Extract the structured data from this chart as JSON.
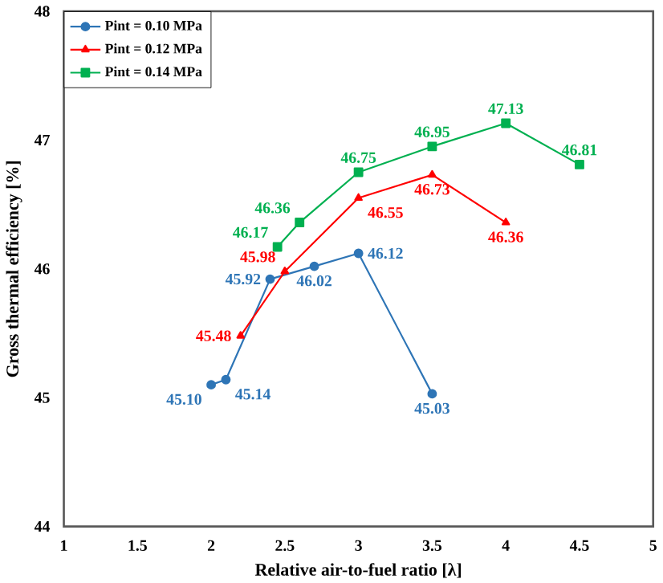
{
  "chart_data": {
    "type": "line",
    "xlabel": "Relative air-to-fuel ratio [λ]",
    "ylabel": "Gross thermal efficiency [%]",
    "xlim": [
      1,
      5
    ],
    "xticks": [
      1,
      1.5,
      2,
      2.5,
      3,
      3.5,
      4,
      4.5,
      5
    ],
    "ylim": [
      44,
      48
    ],
    "yticks": [
      44,
      45,
      46,
      47,
      48
    ],
    "legend": "top left",
    "grid": false,
    "line_style": "solid",
    "series": [
      {
        "name": "Pint = 0.10 MPa",
        "color": "#2e75b6",
        "marker": "circle",
        "x": [
          2.0,
          2.1,
          2.4,
          2.7,
          3.0,
          3.5
        ],
        "values": [
          45.1,
          45.14,
          45.92,
          46.02,
          46.12,
          45.03
        ],
        "value_labels": [
          "45.10",
          "45.14",
          "45.92",
          "46.02",
          "46.12",
          "45.03"
        ]
      },
      {
        "name": "Pint = 0.12 MPa",
        "color": "#ff0000",
        "marker": "triangle",
        "x": [
          2.2,
          2.5,
          3.0,
          3.5,
          4.0
        ],
        "values": [
          45.48,
          45.98,
          46.55,
          46.73,
          46.36
        ],
        "value_labels": [
          "45.48",
          "45.98",
          "46.55",
          "46.73",
          "46.36"
        ]
      },
      {
        "name": "Pint = 0.14 MPa",
        "color": "#00b050",
        "marker": "square",
        "x": [
          2.45,
          2.6,
          3.0,
          3.5,
          4.0,
          4.5
        ],
        "values": [
          46.17,
          46.36,
          46.75,
          46.95,
          47.13,
          46.81
        ],
        "value_labels": [
          "46.17",
          "46.36",
          "46.75",
          "46.95",
          "47.13",
          "46.81"
        ]
      }
    ]
  }
}
